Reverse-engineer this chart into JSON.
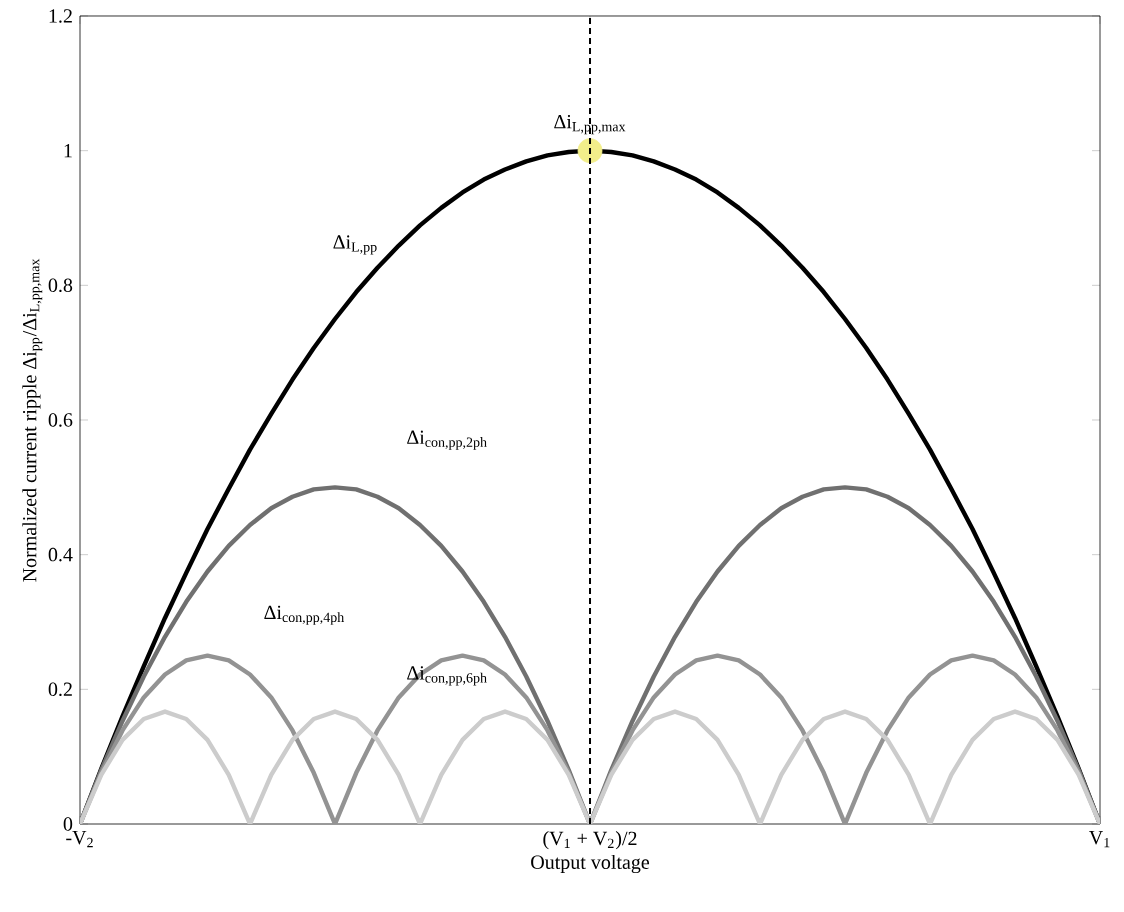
{
  "chart_data": {
    "type": "line",
    "xlabel": "Output voltage",
    "ylabel": "Normalized current ripple  Δi$_{pp}$/Δi$_{L,pp,max}$",
    "categories": [
      "-V$_{2}$",
      null,
      null,
      null,
      null,
      null,
      null,
      null,
      null,
      null,
      null,
      null,
      null,
      null,
      null,
      null,
      null,
      null,
      null,
      null,
      null,
      null,
      null,
      null,
      "(V$_{1}$ + V$_{2}$)/2",
      null,
      null,
      null,
      null,
      null,
      null,
      null,
      null,
      null,
      null,
      null,
      null,
      null,
      null,
      null,
      null,
      null,
      null,
      null,
      null,
      null,
      null,
      null,
      "V$_{1}$"
    ],
    "series": [
      {
        "color": "#000000",
        "values": [
          0,
          0.082,
          0.16,
          0.234,
          0.306,
          0.373,
          0.438,
          0.498,
          0.556,
          0.609,
          0.66,
          0.707,
          0.75,
          0.79,
          0.826,
          0.859,
          0.889,
          0.915,
          0.938,
          0.957,
          0.972,
          0.984,
          0.993,
          0.998,
          1,
          0.998,
          0.993,
          0.984,
          0.972,
          0.957,
          0.938,
          0.915,
          0.889,
          0.859,
          0.826,
          0.79,
          0.75,
          0.707,
          0.66,
          0.609,
          0.556,
          0.498,
          0.438,
          0.373,
          0.306,
          0.234,
          0.16,
          0.082,
          0
        ]
      },
      {
        "color": "#707070",
        "values": [
          0,
          0.08,
          0.153,
          0.219,
          0.278,
          0.33,
          0.375,
          0.413,
          0.444,
          0.469,
          0.486,
          0.497,
          0.5,
          0.497,
          0.486,
          0.469,
          0.444,
          0.413,
          0.375,
          0.33,
          0.278,
          0.219,
          0.153,
          0.08,
          0,
          0.08,
          0.153,
          0.219,
          0.278,
          0.33,
          0.375,
          0.413,
          0.444,
          0.469,
          0.486,
          0.497,
          0.5,
          0.497,
          0.486,
          0.469,
          0.444,
          0.413,
          0.375,
          0.33,
          0.278,
          0.219,
          0.153,
          0.08,
          0
        ]
      },
      {
        "color": "#939393",
        "values": [
          0,
          0.076,
          0.139,
          0.188,
          0.222,
          0.243,
          0.25,
          0.243,
          0.222,
          0.188,
          0.139,
          0.076,
          0,
          0.076,
          0.139,
          0.188,
          0.222,
          0.243,
          0.25,
          0.243,
          0.222,
          0.188,
          0.139,
          0.076,
          0,
          0.076,
          0.139,
          0.188,
          0.222,
          0.243,
          0.25,
          0.243,
          0.222,
          0.188,
          0.139,
          0.076,
          0,
          0.076,
          0.139,
          0.188,
          0.222,
          0.243,
          0.25,
          0.243,
          0.222,
          0.188,
          0.139,
          0.076,
          0
        ]
      },
      {
        "color": "#cccccc",
        "values": [
          0,
          0.073,
          0.125,
          0.156,
          0.167,
          0.156,
          0.125,
          0.073,
          0,
          0.073,
          0.125,
          0.156,
          0.167,
          0.156,
          0.125,
          0.073,
          0,
          0.073,
          0.125,
          0.156,
          0.167,
          0.156,
          0.125,
          0.073,
          0,
          0.073,
          0.125,
          0.156,
          0.167,
          0.156,
          0.125,
          0.073,
          0,
          0.073,
          0.125,
          0.156,
          0.167,
          0.156,
          0.125,
          0.073,
          0,
          0.073,
          0.125,
          0.156,
          0.167,
          0.156,
          0.125,
          0.073,
          0
        ]
      },
      {
        "type": "scatter",
        "marker": "circle",
        "color": "#f2ee8a",
        "values": [
          null,
          null,
          null,
          null,
          null,
          null,
          null,
          null,
          null,
          null,
          null,
          null,
          null,
          null,
          null,
          null,
          null,
          null,
          null,
          null,
          null,
          null,
          null,
          null,
          1,
          null,
          null,
          null,
          null,
          null,
          null,
          null,
          null,
          null,
          null,
          null,
          null,
          null,
          null,
          null,
          null,
          null,
          null,
          null,
          null,
          null,
          null,
          null,
          null
        ]
      }
    ],
    "ylim": [
      0,
      1.2
    ],
    "yticks": [
      0,
      0.2,
      0.4,
      0.6,
      0.8,
      1,
      1.2
    ],
    "ref_lines": [
      {
        "axis": "x",
        "value": "(V$_{1}$ + V$_{2}$)/2",
        "line_style": "dashed",
        "color": "#000000"
      }
    ],
    "annotations": [
      {
        "text": "Δi$_{L,pp,max}$",
        "x": "(V$_{1}$ + V$_{2}$)/2",
        "y": 1
      },
      "Δi$_{L,pp}$",
      "Δi$_{con,pp,2ph}$",
      "Δi$_{con,pp,4ph}$",
      "Δi$_{con,pp,6ph}$"
    ]
  }
}
